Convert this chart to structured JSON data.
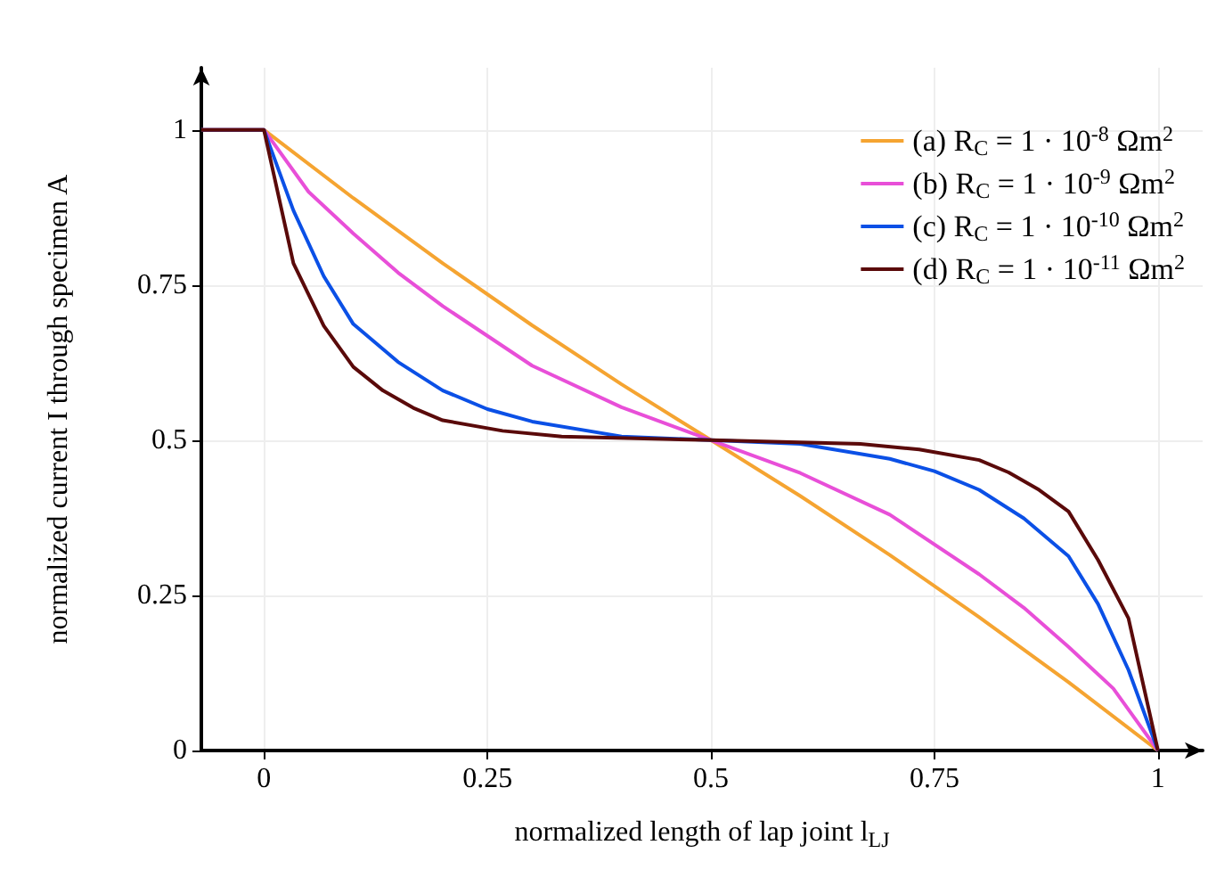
{
  "chart_data": {
    "type": "line",
    "xlabel": "normalized length of lap joint l$_{LJ}$",
    "ylabel": "normalized current I through specimen A",
    "xlim": [
      -0.07,
      1.05
    ],
    "ylim": [
      0,
      1.1
    ],
    "xticks": [
      0,
      0.25,
      0.5,
      0.75,
      1
    ],
    "yticks": [
      0,
      0.25,
      0.5,
      0.75,
      1
    ],
    "grid": true,
    "legend": "top right",
    "series": [
      {
        "name": "(a) R$_{C}$ = 1 · 10$^{-8}$ Ωm$^{2}$",
        "color": "#f5a431",
        "x": [
          -0.07,
          0,
          0.1,
          0.2,
          0.3,
          0.4,
          0.5,
          0.6,
          0.7,
          0.8,
          0.9,
          1
        ],
        "values": [
          1,
          1,
          0.89,
          0.785,
          0.685,
          0.59,
          0.5,
          0.41,
          0.315,
          0.215,
          0.11,
          0
        ]
      },
      {
        "name": "(b) R$_{C}$ = 1 · 10$^{-9}$ Ωm$^{2}$",
        "color": "#e84fd8",
        "x": [
          -0.07,
          0,
          0.05,
          0.1,
          0.15,
          0.2,
          0.3,
          0.4,
          0.5,
          0.6,
          0.7,
          0.8,
          0.85,
          0.9,
          0.95,
          1
        ],
        "values": [
          1,
          1,
          0.9,
          0.833,
          0.77,
          0.716,
          0.62,
          0.553,
          0.5,
          0.447,
          0.38,
          0.284,
          0.23,
          0.167,
          0.1,
          0
        ]
      },
      {
        "name": "(c) R$_{C}$ = 1 · 10$^{-10}$ Ωm$^{2}$",
        "color": "#0b50e6",
        "x": [
          -0.07,
          0,
          0.033,
          0.067,
          0.1,
          0.15,
          0.2,
          0.25,
          0.3,
          0.4,
          0.5,
          0.6,
          0.7,
          0.75,
          0.8,
          0.85,
          0.9,
          0.933,
          0.967,
          1
        ],
        "values": [
          1,
          1,
          0.87,
          0.764,
          0.687,
          0.626,
          0.58,
          0.55,
          0.53,
          0.506,
          0.5,
          0.494,
          0.47,
          0.45,
          0.42,
          0.374,
          0.313,
          0.236,
          0.13,
          0
        ]
      },
      {
        "name": "(d) R$_{C}$ = 1 · 10$^{-11}$ Ωm$^{2}$",
        "color": "#5a0a0a",
        "x": [
          -0.07,
          0,
          0.033,
          0.067,
          0.1,
          0.133,
          0.167,
          0.2,
          0.267,
          0.333,
          0.5,
          0.667,
          0.733,
          0.8,
          0.833,
          0.867,
          0.9,
          0.933,
          0.967,
          1
        ],
        "values": [
          1,
          1,
          0.785,
          0.684,
          0.618,
          0.58,
          0.552,
          0.532,
          0.515,
          0.506,
          0.5,
          0.494,
          0.485,
          0.468,
          0.448,
          0.42,
          0.385,
          0.307,
          0.213,
          0
        ]
      }
    ]
  }
}
